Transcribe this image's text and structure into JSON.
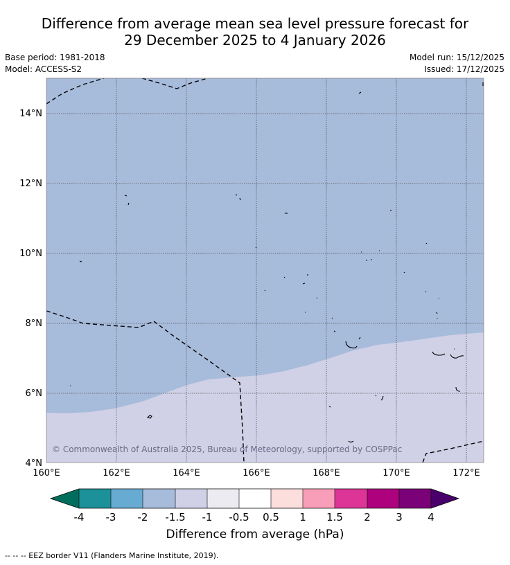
{
  "title": {
    "line1": "Difference from average mean sea level pressure forecast for",
    "line2": "29 December 2025 to 4 January 2026"
  },
  "meta": {
    "base_period": "Base period: 1981-2018",
    "model": "Model: ACCESS-S2",
    "model_run": "Model run: 15/12/2025",
    "issued": "Issued: 17/12/2025"
  },
  "map": {
    "lon_ticks": [
      "160°E",
      "162°E",
      "164°E",
      "166°E",
      "168°E",
      "170°E",
      "172°E"
    ],
    "lat_ticks": [
      "4°N",
      "6°N",
      "8°N",
      "10°N",
      "12°N",
      "14°N"
    ],
    "copyright": "© Commonwealth of Australia 2025, Bureau of Meteorology, supported by COSPPac",
    "fill_colors": {
      "minus_1_5_to_minus_1": "#a7bbdb",
      "minus_1_to_minus_0_5": "#d0d1e6"
    }
  },
  "colorbar": {
    "title": "Difference from average (hPa)",
    "tick_labels": [
      "-4",
      "-3",
      "-2",
      "-1.5",
      "-1",
      "-0.5",
      "0.5",
      "1",
      "1.5",
      "2",
      "3",
      "4"
    ],
    "colors": [
      "#006e5c",
      "#1c9199",
      "#67abd3",
      "#a7bbdb",
      "#d0d1e6",
      "#ecebf1",
      "#ffffff",
      "#fcdedd",
      "#f99eb8",
      "#dd3497",
      "#ad017d",
      "#7a0177",
      "#49006a"
    ]
  },
  "footnote": "--  --  -- EEZ border V11 (Flanders Marine Institute, 2019)."
}
